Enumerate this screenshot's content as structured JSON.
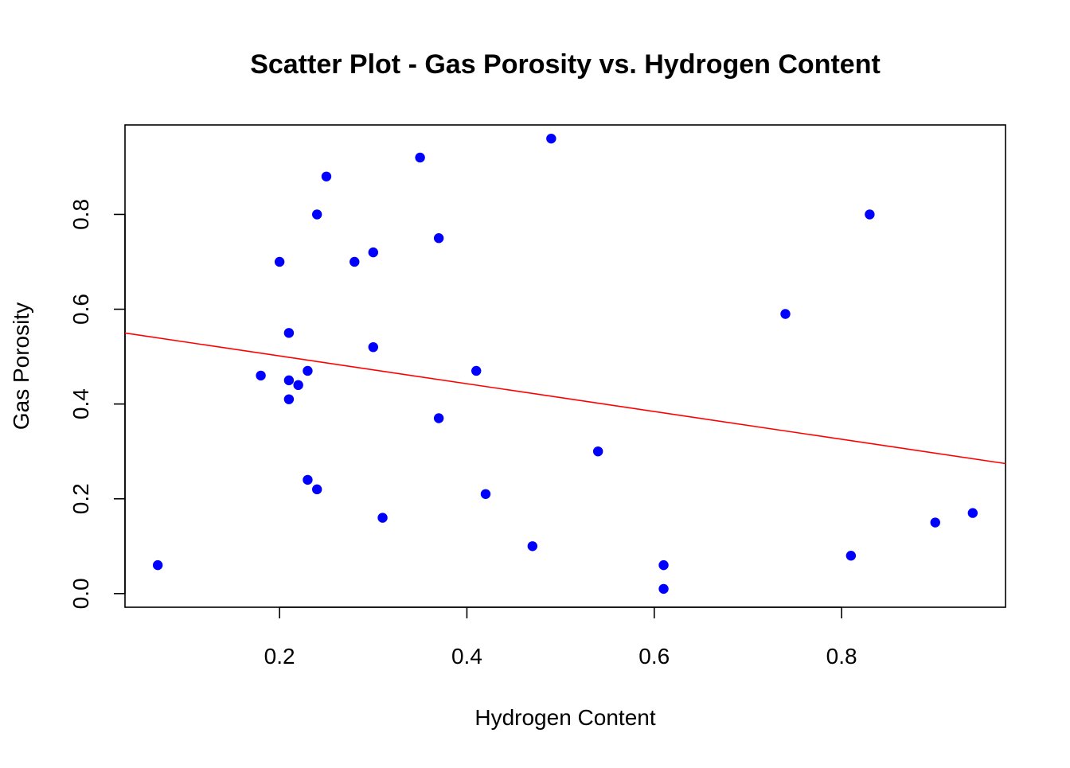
{
  "chart_data": {
    "type": "scatter",
    "title": "Scatter Plot - Gas Porosity vs. Hydrogen Content",
    "xlabel": "Hydrogen Content",
    "ylabel": "Gas Porosity",
    "xlim": [
      0.035,
      0.975
    ],
    "ylim": [
      -0.0288,
      0.9888
    ],
    "x_ticks": [
      0.2,
      0.4,
      0.6,
      0.8
    ],
    "y_ticks": [
      0.0,
      0.2,
      0.4,
      0.6,
      0.8
    ],
    "x_tick_labels": [
      "0.2",
      "0.4",
      "0.6",
      "0.8"
    ],
    "y_tick_labels": [
      "0.0",
      "0.2",
      "0.4",
      "0.6",
      "0.8"
    ],
    "grid": false,
    "legend": "none",
    "point_color": "#0000FF",
    "line_color": "#FF0000",
    "points": [
      {
        "x": 0.07,
        "y": 0.06
      },
      {
        "x": 0.18,
        "y": 0.46
      },
      {
        "x": 0.2,
        "y": 0.7
      },
      {
        "x": 0.21,
        "y": 0.55
      },
      {
        "x": 0.21,
        "y": 0.45
      },
      {
        "x": 0.21,
        "y": 0.41
      },
      {
        "x": 0.22,
        "y": 0.44
      },
      {
        "x": 0.23,
        "y": 0.47
      },
      {
        "x": 0.23,
        "y": 0.24
      },
      {
        "x": 0.24,
        "y": 0.8
      },
      {
        "x": 0.24,
        "y": 0.22
      },
      {
        "x": 0.25,
        "y": 0.88
      },
      {
        "x": 0.28,
        "y": 0.7
      },
      {
        "x": 0.3,
        "y": 0.72
      },
      {
        "x": 0.3,
        "y": 0.52
      },
      {
        "x": 0.31,
        "y": 0.16
      },
      {
        "x": 0.35,
        "y": 0.92
      },
      {
        "x": 0.37,
        "y": 0.75
      },
      {
        "x": 0.37,
        "y": 0.37
      },
      {
        "x": 0.41,
        "y": 0.47
      },
      {
        "x": 0.42,
        "y": 0.21
      },
      {
        "x": 0.47,
        "y": 0.1
      },
      {
        "x": 0.49,
        "y": 0.96
      },
      {
        "x": 0.54,
        "y": 0.3
      },
      {
        "x": 0.61,
        "y": 0.06
      },
      {
        "x": 0.61,
        "y": 0.01
      },
      {
        "x": 0.74,
        "y": 0.59
      },
      {
        "x": 0.81,
        "y": 0.08
      },
      {
        "x": 0.83,
        "y": 0.8
      },
      {
        "x": 0.9,
        "y": 0.15
      },
      {
        "x": 0.94,
        "y": 0.17
      }
    ],
    "regression_line": {
      "intercept": 0.56,
      "slope": -0.293
    }
  }
}
